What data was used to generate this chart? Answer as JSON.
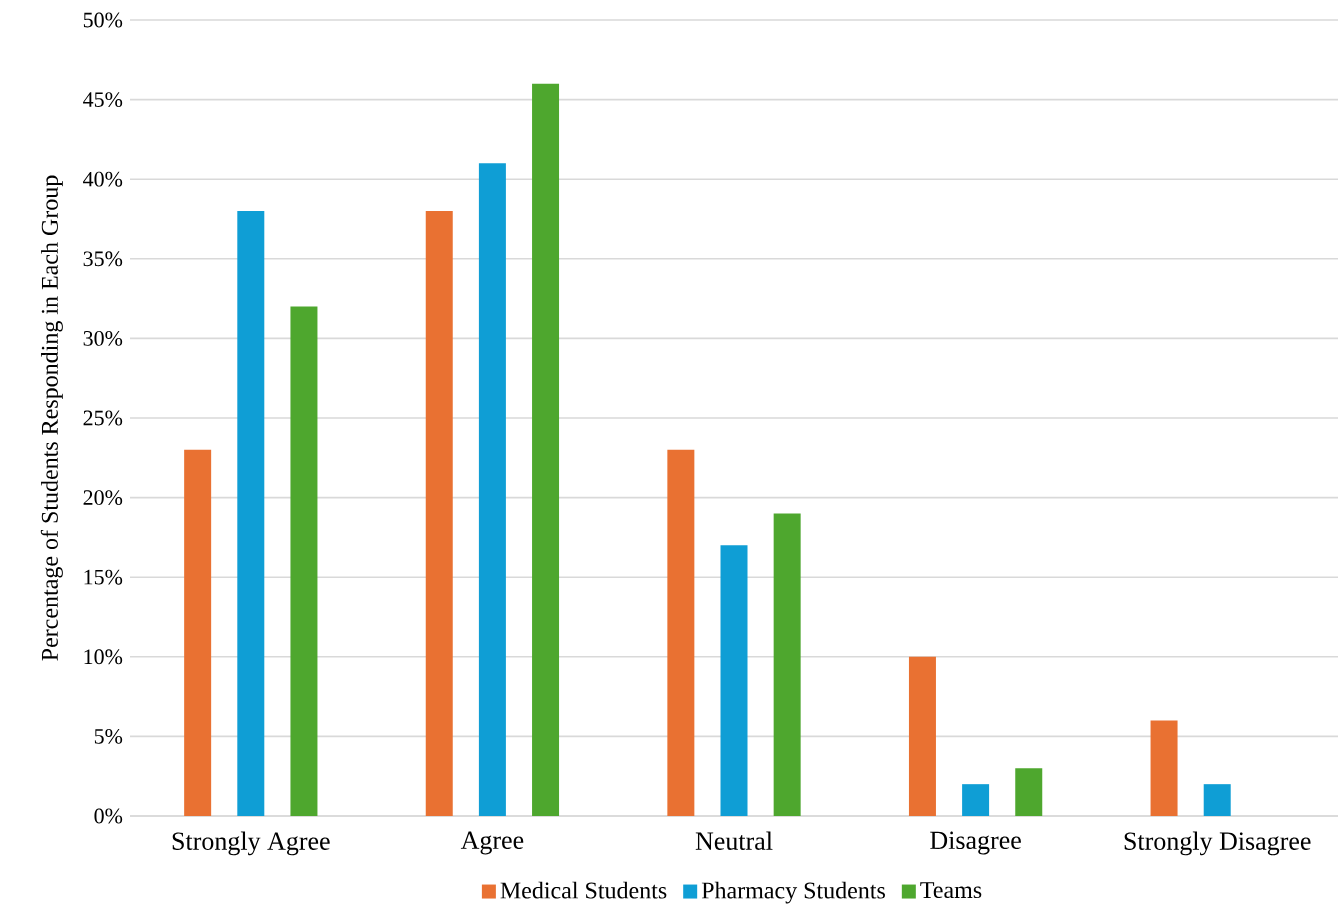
{
  "chart_data": {
    "type": "bar",
    "ylabel": "Percentage of Students Responding in Each Group",
    "categories": [
      "Strongly Agree",
      "Agree",
      "Neutral",
      "Disagree",
      "Strongly Disagree"
    ],
    "series": [
      {
        "name": "Medical Students",
        "color": "#e97132",
        "values": [
          23,
          38,
          23,
          10,
          6
        ]
      },
      {
        "name": "Pharmacy Students",
        "color": "#0f9ed5",
        "values": [
          38,
          41,
          17,
          2,
          2
        ]
      },
      {
        "name": "Teams",
        "color": "#4ea72e",
        "values": [
          32,
          46,
          19,
          3,
          0
        ]
      }
    ],
    "ylim": [
      0,
      50
    ],
    "yticks": [
      {
        "value": 0,
        "label": "0%"
      },
      {
        "value": 5,
        "label": "5%"
      },
      {
        "value": 10,
        "label": "10%"
      },
      {
        "value": 15,
        "label": "15%"
      },
      {
        "value": 20,
        "label": "20%"
      },
      {
        "value": 25,
        "label": "25%"
      },
      {
        "value": 30,
        "label": "30%"
      },
      {
        "value": 35,
        "label": "35%"
      },
      {
        "value": 40,
        "label": "40%"
      },
      {
        "value": 45,
        "label": "45%"
      },
      {
        "value": 50,
        "label": "50%"
      }
    ],
    "grid": "y",
    "legend": "bottom"
  }
}
